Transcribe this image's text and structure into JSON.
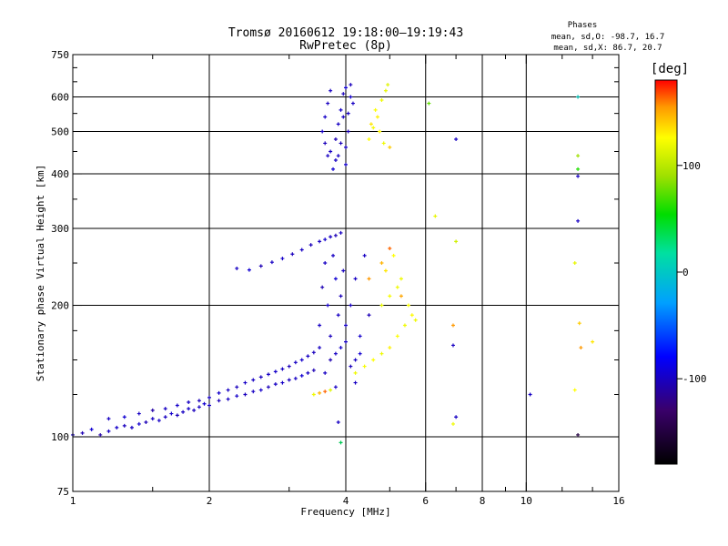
{
  "title": "Tromsø 20160612 19:18:00–19:19:43",
  "subtitle": "RwPretec (8p)",
  "stats": {
    "heading": "Phases",
    "line1": "mean, sd,O: -98.7, 16.7",
    "line2": "mean, sd,X:  86.7, 20.7"
  },
  "colorbar": {
    "unit": "[deg]",
    "range": [
      -180,
      180
    ],
    "ticks": [
      {
        "value": 100,
        "label": "100"
      },
      {
        "value": 0,
        "label": "0"
      },
      {
        "value": -100,
        "label": "-100"
      }
    ]
  },
  "chart_data": {
    "type": "scatter",
    "xlabel": "Frequency [MHz]",
    "ylabel": "Stationary phase Virtual Height [km]",
    "xscale": "log",
    "yscale": "log",
    "xlim": [
      1,
      16
    ],
    "ylim": [
      75,
      750
    ],
    "grid": true,
    "color_encoding": "phase (deg)",
    "x_major_ticks": [
      {
        "v": 1,
        "label": "1"
      },
      {
        "v": 2,
        "label": "2"
      },
      {
        "v": 4,
        "label": "4"
      },
      {
        "v": 6,
        "label": "6"
      },
      {
        "v": 8,
        "label": "8"
      },
      {
        "v": 10,
        "label": "10"
      },
      {
        "v": 16,
        "label": "16"
      }
    ],
    "x_minor_ticks": [
      1.5,
      3,
      5,
      7,
      9,
      12,
      14
    ],
    "y_major_ticks": [
      {
        "v": 75,
        "label": "75"
      },
      {
        "v": 100,
        "label": "100"
      },
      {
        "v": 200,
        "label": "200"
      },
      {
        "v": 300,
        "label": "300"
      },
      {
        "v": 400,
        "label": "400"
      },
      {
        "v": 500,
        "label": "500"
      },
      {
        "v": 600,
        "label": "600"
      },
      {
        "v": 750,
        "label": "750"
      }
    ],
    "y_minor_ticks": [
      125,
      150,
      175,
      250,
      350,
      450,
      550,
      650,
      700
    ],
    "x_grid": [
      2,
      4,
      6,
      8,
      10
    ],
    "y_grid": [
      100,
      200,
      300,
      400,
      500,
      600
    ],
    "points": [
      [
        1.0,
        101,
        -100
      ],
      [
        1.05,
        102,
        -105
      ],
      [
        1.1,
        104,
        -95
      ],
      [
        1.15,
        101,
        -110
      ],
      [
        1.2,
        103,
        -100
      ],
      [
        1.25,
        105,
        -98
      ],
      [
        1.3,
        106,
        -102
      ],
      [
        1.35,
        105,
        -100
      ],
      [
        1.4,
        107,
        -96
      ],
      [
        1.45,
        108,
        -104
      ],
      [
        1.5,
        110,
        -100
      ],
      [
        1.55,
        109,
        -99
      ],
      [
        1.6,
        111,
        -101
      ],
      [
        1.65,
        113,
        -97
      ],
      [
        1.7,
        112,
        -103
      ],
      [
        1.75,
        114,
        -100
      ],
      [
        1.8,
        116,
        -98
      ],
      [
        1.85,
        115,
        -102
      ],
      [
        1.9,
        117,
        -100
      ],
      [
        1.95,
        119,
        -96
      ],
      [
        2.0,
        118,
        -100
      ],
      [
        2.1,
        121,
        -104
      ],
      [
        2.2,
        122,
        -100
      ],
      [
        2.3,
        124,
        -98
      ],
      [
        2.4,
        125,
        -102
      ],
      [
        2.5,
        127,
        -100
      ],
      [
        2.6,
        128,
        -97
      ],
      [
        2.7,
        130,
        -103
      ],
      [
        2.8,
        132,
        -100
      ],
      [
        2.9,
        133,
        -99
      ],
      [
        3.0,
        135,
        -101
      ],
      [
        3.1,
        136,
        -100
      ],
      [
        3.2,
        138,
        -95
      ],
      [
        3.3,
        140,
        -100
      ],
      [
        3.4,
        142,
        -105
      ],
      [
        1.2,
        110,
        -100
      ],
      [
        1.3,
        111,
        -95
      ],
      [
        1.4,
        113,
        -100
      ],
      [
        1.5,
        115,
        -110
      ],
      [
        1.6,
        116,
        -100
      ],
      [
        1.7,
        118,
        -98
      ],
      [
        1.8,
        120,
        -100
      ],
      [
        1.9,
        121,
        -103
      ],
      [
        2.0,
        123,
        -100
      ],
      [
        2.1,
        126,
        -97
      ],
      [
        2.2,
        128,
        -100
      ],
      [
        2.3,
        130,
        -102
      ],
      [
        2.4,
        133,
        -99
      ],
      [
        2.5,
        135,
        -100
      ],
      [
        2.6,
        137,
        -101
      ],
      [
        2.7,
        139,
        -100
      ],
      [
        2.8,
        141,
        -98
      ],
      [
        2.9,
        143,
        -100
      ],
      [
        3.0,
        145,
        -104
      ],
      [
        3.1,
        148,
        -100
      ],
      [
        3.2,
        150,
        -97
      ],
      [
        3.3,
        153,
        -100
      ],
      [
        3.4,
        156,
        -102
      ],
      [
        3.5,
        160,
        -100
      ],
      [
        2.3,
        243,
        -100
      ],
      [
        2.45,
        241,
        -95
      ],
      [
        2.6,
        246,
        -105
      ],
      [
        2.75,
        251,
        -100
      ],
      [
        2.9,
        256,
        -98
      ],
      [
        3.05,
        262,
        -102
      ],
      [
        3.2,
        268,
        -100
      ],
      [
        3.35,
        275,
        -103
      ],
      [
        3.5,
        280,
        -100
      ],
      [
        3.6,
        283,
        -96
      ],
      [
        3.7,
        287,
        -100
      ],
      [
        3.8,
        289,
        -104
      ],
      [
        3.9,
        293,
        -100
      ],
      [
        3.5,
        180,
        -100
      ],
      [
        3.55,
        220,
        -105
      ],
      [
        3.6,
        250,
        -100
      ],
      [
        3.65,
        200,
        -98
      ],
      [
        3.7,
        170,
        -102
      ],
      [
        3.75,
        260,
        -100
      ],
      [
        3.8,
        230,
        -95
      ],
      [
        3.85,
        190,
        -100
      ],
      [
        3.9,
        210,
        -103
      ],
      [
        3.95,
        240,
        -100
      ],
      [
        4.0,
        180,
        -99
      ],
      [
        4.1,
        200,
        -101
      ],
      [
        4.2,
        230,
        -100
      ],
      [
        4.3,
        170,
        -97
      ],
      [
        4.4,
        260,
        -100
      ],
      [
        4.5,
        190,
        -104
      ],
      [
        3.6,
        140,
        -100
      ],
      [
        3.7,
        150,
        -106
      ],
      [
        3.8,
        155,
        -100
      ],
      [
        3.9,
        160,
        -98
      ],
      [
        4.0,
        165,
        -100
      ],
      [
        4.1,
        145,
        -102
      ],
      [
        4.2,
        150,
        -100
      ],
      [
        4.3,
        155,
        -96
      ],
      [
        3.8,
        430,
        -100
      ],
      [
        3.8,
        480,
        -105
      ],
      [
        3.85,
        520,
        -100
      ],
      [
        3.9,
        560,
        -98
      ],
      [
        3.95,
        610,
        -102
      ],
      [
        3.7,
        450,
        -100
      ],
      [
        3.75,
        410,
        -95
      ],
      [
        3.65,
        440,
        -100
      ],
      [
        3.6,
        470,
        -103
      ],
      [
        3.55,
        500,
        -100
      ],
      [
        3.6,
        540,
        -99
      ],
      [
        3.65,
        580,
        -101
      ],
      [
        3.7,
        620,
        -100
      ],
      [
        4.0,
        420,
        -97
      ],
      [
        4.0,
        460,
        -100
      ],
      [
        4.05,
        500,
        -104
      ],
      [
        4.05,
        550,
        -100
      ],
      [
        4.1,
        600,
        -98
      ],
      [
        4.1,
        640,
        -102
      ],
      [
        4.15,
        580,
        -100
      ],
      [
        4.0,
        630,
        -95
      ],
      [
        3.95,
        540,
        -100
      ],
      [
        3.9,
        470,
        -103
      ],
      [
        3.85,
        440,
        -100
      ],
      [
        4.5,
        480,
        110
      ],
      [
        4.6,
        510,
        105
      ],
      [
        4.7,
        540,
        115
      ],
      [
        4.8,
        590,
        100
      ],
      [
        4.9,
        620,
        95
      ],
      [
        4.55,
        520,
        120
      ],
      [
        4.65,
        560,
        108
      ],
      [
        4.75,
        500,
        112
      ],
      [
        4.85,
        470,
        100
      ],
      [
        4.95,
        640,
        90
      ],
      [
        5.0,
        460,
        130
      ],
      [
        4.2,
        140,
        100
      ],
      [
        4.4,
        145,
        105
      ],
      [
        4.6,
        150,
        110
      ],
      [
        4.8,
        155,
        100
      ],
      [
        5.0,
        160,
        115
      ],
      [
        5.2,
        170,
        108
      ],
      [
        5.4,
        180,
        100
      ],
      [
        5.6,
        190,
        112
      ],
      [
        4.8,
        200,
        95
      ],
      [
        5.0,
        210,
        105
      ],
      [
        5.2,
        220,
        100
      ],
      [
        4.9,
        240,
        120
      ],
      [
        5.1,
        260,
        110
      ],
      [
        5.3,
        230,
        100
      ],
      [
        5.5,
        200,
        105
      ],
      [
        5.7,
        185,
        100
      ],
      [
        3.4,
        125,
        100
      ],
      [
        3.5,
        126,
        140
      ],
      [
        3.6,
        127,
        160
      ],
      [
        3.7,
        128,
        90
      ],
      [
        3.8,
        130,
        -100
      ],
      [
        4.5,
        230,
        150
      ],
      [
        4.8,
        250,
        140
      ],
      [
        5.0,
        270,
        160
      ],
      [
        5.3,
        210,
        145
      ],
      [
        6.9,
        180,
        150
      ],
      [
        7.0,
        280,
        80
      ],
      [
        6.1,
        580,
        30
      ],
      [
        7.0,
        480,
        -100
      ],
      [
        6.3,
        320,
        95
      ],
      [
        13.0,
        600,
        -20
      ],
      [
        13.0,
        440,
        50
      ],
      [
        13.0,
        410,
        10
      ],
      [
        13.0,
        395,
        -100
      ],
      [
        13.0,
        312,
        -100
      ],
      [
        12.8,
        250,
        95
      ],
      [
        13.1,
        182,
        130
      ],
      [
        13.2,
        160,
        150
      ],
      [
        14.0,
        165,
        120
      ],
      [
        12.8,
        128,
        110
      ],
      [
        13.0,
        101,
        -150
      ],
      [
        10.2,
        125,
        -100
      ],
      [
        6.9,
        162,
        -100
      ],
      [
        6.9,
        107,
        100
      ],
      [
        7.0,
        111,
        -100
      ],
      [
        3.9,
        97,
        -10
      ],
      [
        3.85,
        108,
        -100
      ],
      [
        4.2,
        133,
        -100
      ]
    ]
  }
}
